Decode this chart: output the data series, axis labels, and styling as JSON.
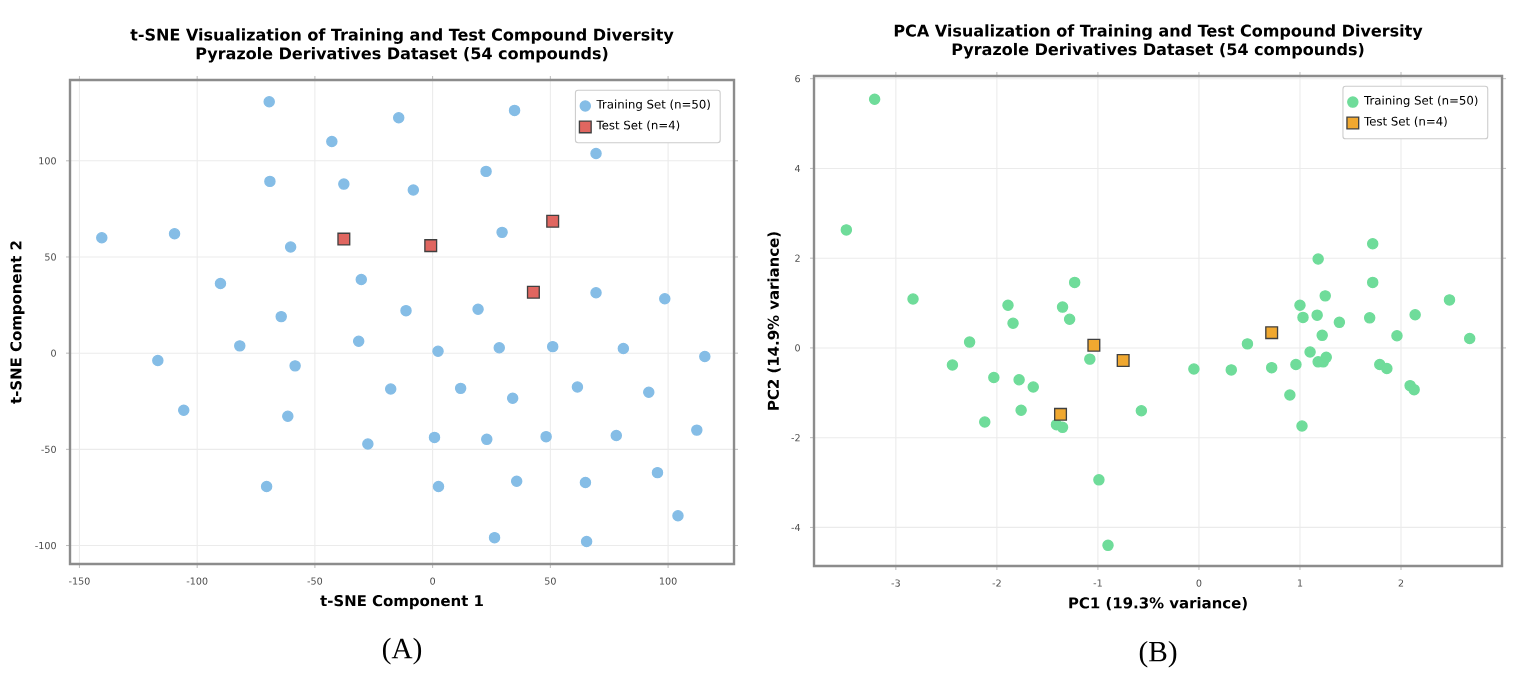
{
  "chart_data": [
    {
      "type": "scatter",
      "title": "t-SNE Visualization of Training and Test Compound Diversity",
      "subtitle": "Pyrazole Derivatives Dataset (54 compounds)",
      "xlabel": "t-SNE Component 1",
      "ylabel": "t-SNE Component 2",
      "xlim": [
        -154,
        128
      ],
      "ylim": [
        -109.6,
        142
      ],
      "xticks": [
        -150,
        -100,
        -50,
        0,
        50,
        100
      ],
      "yticks": [
        -100,
        -50,
        0,
        50,
        100
      ],
      "grid": true,
      "legend": "top right",
      "annotations": [
        "(A)"
      ],
      "series": [
        {
          "name": "Training Set (n=50)",
          "color": "#85bde6",
          "marker": "circle",
          "x": [
            -69.4,
            -14.4,
            34.8,
            -42.8,
            69.4,
            -69.1,
            -37.7,
            -8.2,
            22.7,
            -140.5,
            -109.6,
            -60.3,
            29.5,
            -90.1,
            -30.3,
            -64.3,
            -11.3,
            19.3,
            69.4,
            98.6,
            -116.7,
            -81.9,
            -58.4,
            -31.4,
            2.3,
            28.3,
            51,
            81,
            115.6,
            -105.7,
            -61.5,
            -17.8,
            11.9,
            34,
            61.5,
            91.8,
            -27.5,
            0.8,
            23,
            48.2,
            78,
            112.2,
            -70.5,
            2.5,
            35.7,
            64.9,
            95.5,
            104.2,
            26.3,
            65.4
          ],
          "values": [
            130.7,
            122.4,
            126.2,
            110,
            103.8,
            89.3,
            87.9,
            84.8,
            94.5,
            60,
            62.1,
            55.2,
            62.8,
            36.2,
            38.3,
            19,
            22.1,
            22.8,
            31.4,
            28.3,
            -3.8,
            3.8,
            -6.6,
            6.2,
            1,
            2.8,
            3.4,
            2.4,
            -1.7,
            -29.7,
            -32.8,
            -18.6,
            -18.3,
            -23.4,
            -17.6,
            -20.3,
            -47.2,
            -43.8,
            -44.8,
            -43.4,
            -42.8,
            -40,
            -69.3,
            -69.3,
            -66.6,
            -67.2,
            -62.1,
            -84.5,
            -95.9,
            -97.9
          ]
        },
        {
          "name": "Test Set (n=4)",
          "color": "#e06660",
          "marker": "square",
          "x": [
            -37.7,
            -0.8,
            51,
            42.8
          ],
          "values": [
            59.3,
            55.9,
            68.6,
            31.7
          ]
        }
      ]
    },
    {
      "type": "scatter",
      "title": "PCA Visualization of Training and Test Compound Diversity",
      "subtitle": "Pyrazole Derivatives Dataset (54 compounds)",
      "xlabel": "PC1 (19.3% variance)",
      "ylabel": "PC2 (14.9% variance)",
      "xlim": [
        -3.81,
        3.0
      ],
      "ylim": [
        -4.86,
        6.06
      ],
      "xticks": [
        -3,
        -2,
        -1,
        0,
        1,
        2
      ],
      "yticks": [
        -4,
        -2,
        0,
        2,
        4,
        6
      ],
      "grid": true,
      "legend": "top right",
      "annotations": [
        "(B)"
      ],
      "series": [
        {
          "name": "Training Set (n=50)",
          "color": "#6fdc9a",
          "marker": "circle",
          "x": [
            -3.21,
            -3.49,
            -2.83,
            -1.89,
            -1.84,
            -1.23,
            -1.35,
            -1.28,
            1.18,
            1.72,
            1.72,
            1.25,
            2.48,
            1.0,
            1.03,
            1.17,
            2.14,
            1.69,
            1.39,
            1.22,
            1.96,
            2.68,
            -2.27,
            -2.44,
            -2.03,
            -1.78,
            -1.64,
            -1.76,
            -2.12,
            -1.41,
            -1.35,
            -1.08,
            -0.57,
            -0.99,
            -0.9,
            -0.05,
            0.32,
            0.48,
            0.72,
            0.96,
            1.1,
            1.18,
            1.23,
            1.26,
            0.9,
            1.02,
            1.79,
            1.86,
            2.09,
            2.13
          ],
          "values": [
            5.54,
            2.63,
            1.09,
            0.95,
            0.55,
            1.46,
            0.91,
            0.64,
            1.98,
            2.32,
            1.46,
            1.16,
            1.07,
            0.95,
            0.68,
            0.73,
            0.74,
            0.67,
            0.57,
            0.28,
            0.27,
            0.21,
            0.13,
            -0.38,
            -0.66,
            -0.71,
            -0.87,
            -1.39,
            -1.65,
            -1.71,
            -1.77,
            -0.25,
            -1.4,
            -2.94,
            -4.4,
            -0.47,
            -0.49,
            0.09,
            -0.44,
            -0.37,
            -0.09,
            -0.31,
            -0.31,
            -0.21,
            -1.05,
            -1.74,
            -0.37,
            -0.46,
            -0.84,
            -0.93
          ]
        },
        {
          "name": "Test Set (n=4)",
          "color": "#f0a830",
          "marker": "square",
          "x": [
            -1.04,
            -0.75,
            -1.37,
            0.72
          ],
          "values": [
            0.06,
            -0.28,
            -1.48,
            0.34
          ]
        }
      ]
    }
  ]
}
